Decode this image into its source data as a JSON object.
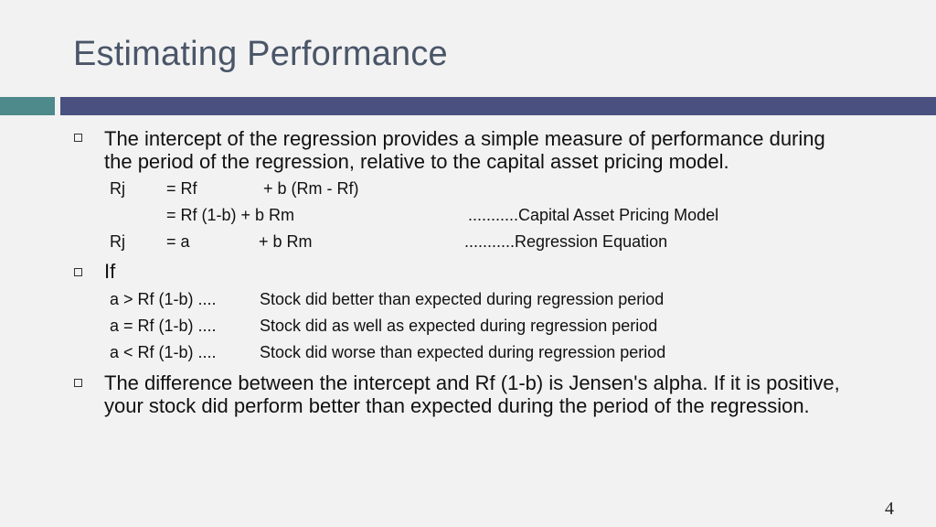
{
  "title": "Estimating Performance",
  "bullets": [
    {
      "text_line1": "The intercept of the regression provides a simple measure of performance during",
      "text_line2": "the period of the regression, relative to the capital asset pricing model."
    },
    {
      "text": "If"
    },
    {
      "text_line1": "The difference between the intercept and Rf (1-b) is Jensen's alpha. If it is positive,",
      "text_line2": "your stock did perform better than expected during the period of the regression."
    }
  ],
  "equations": {
    "row1": {
      "lhs": "Rj",
      "eq": "= Rf",
      "rhs": "+ b (Rm - Rf)"
    },
    "row2": {
      "eq": "= Rf (1-b) + b Rm",
      "note": "...........Capital Asset Pricing Model"
    },
    "row3": {
      "lhs": "Rj",
      "eq": "= a",
      "rhs": "+ b Rm",
      "note": "...........Regression Equation"
    }
  },
  "conditions": [
    {
      "cond": "a > Rf (1-b) ....",
      "desc": "Stock did better than expected during regression period"
    },
    {
      "cond": "a = Rf (1-b) ....",
      "desc": "Stock did as well as expected during regression period"
    },
    {
      "cond": "a < Rf (1-b) ....",
      "desc": "Stock did worse than expected during regression period"
    }
  ],
  "slide_number": "4",
  "colors": {
    "title": "#4a5568",
    "bar_accent": "#4e8a8b",
    "bar_main": "#4a5080"
  }
}
